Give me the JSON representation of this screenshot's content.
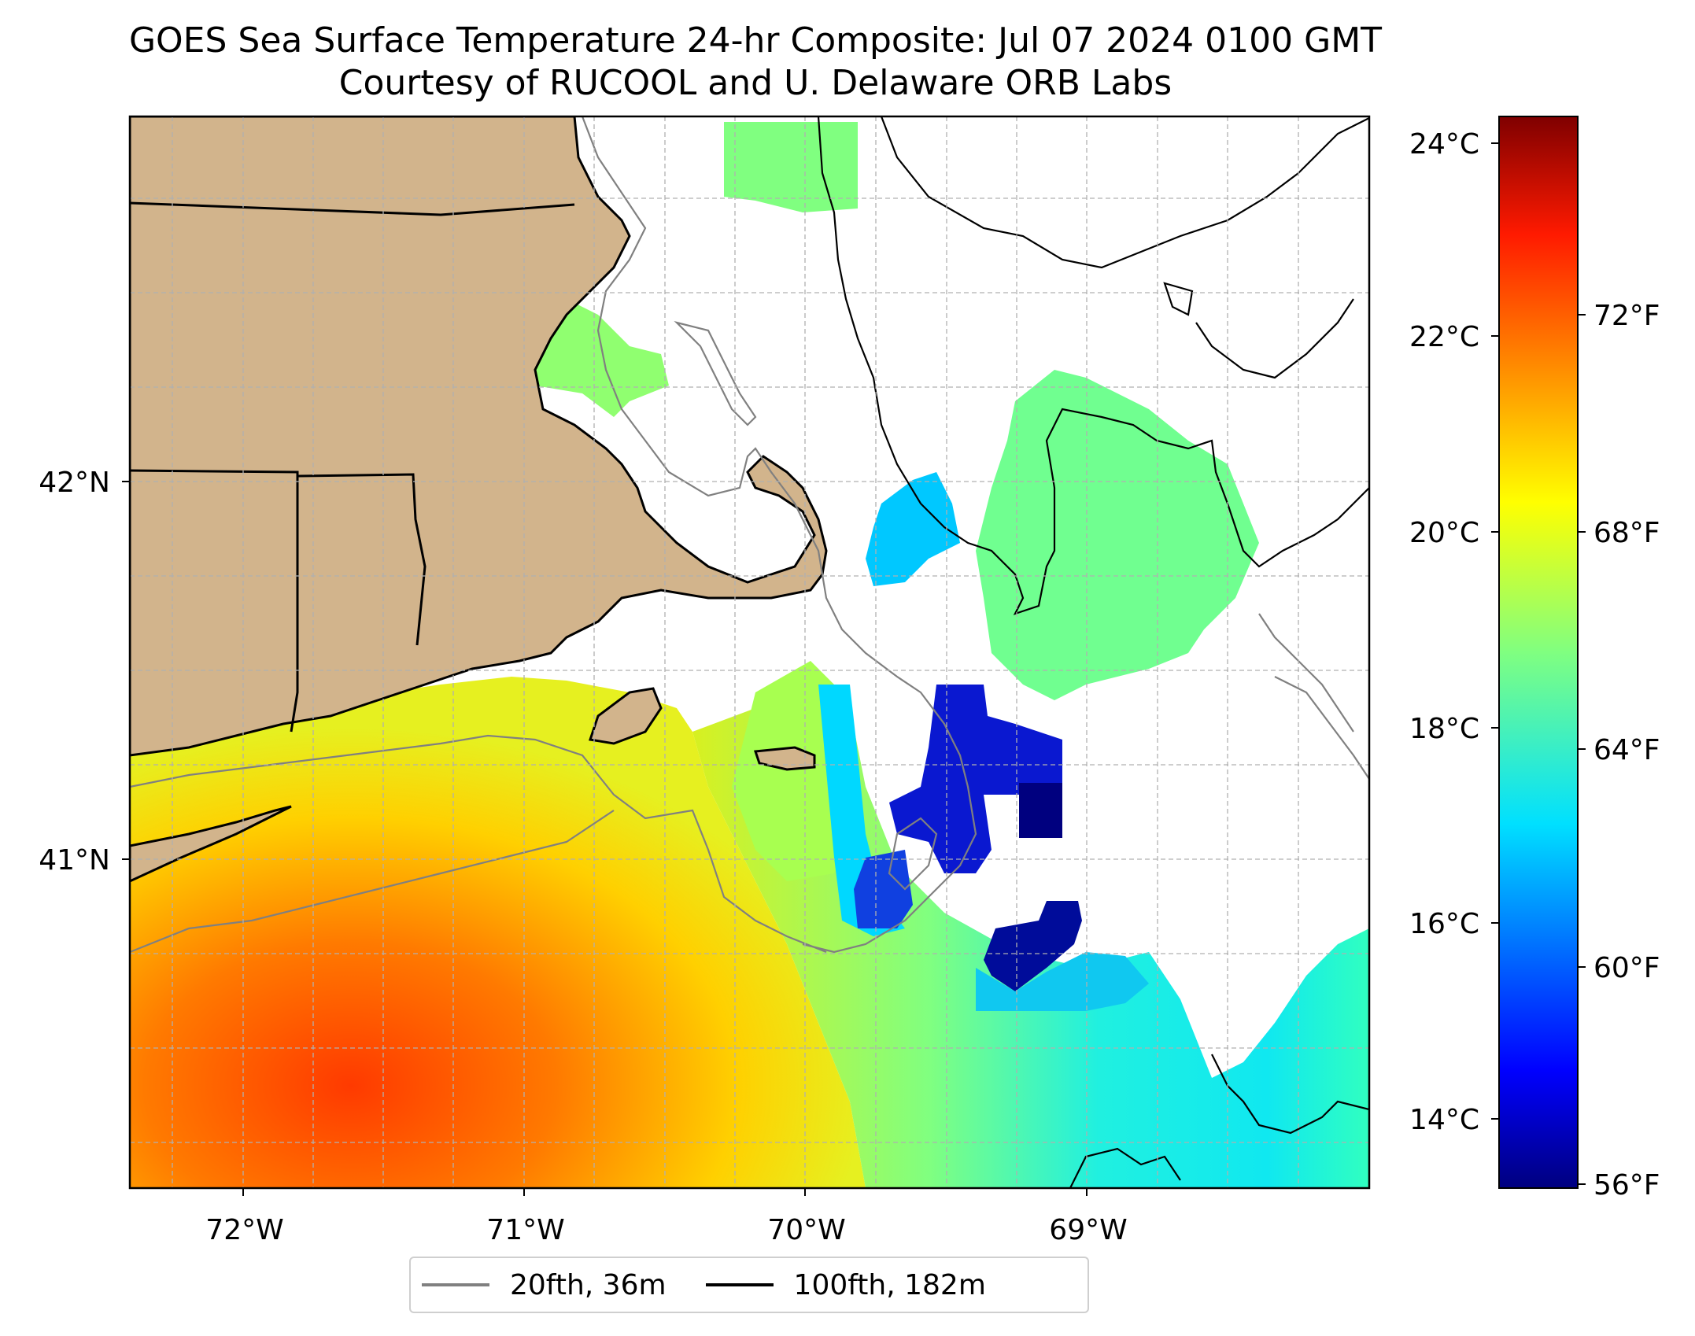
{
  "title": {
    "line1": "GOES Sea Surface Temperature 24-hr Composite: Jul 07 2024 0100 GMT",
    "line2": "Courtesy of RUCOOL and U. Delaware ORB Labs"
  },
  "axes": {
    "lon_ticks": [
      "72°W",
      "71°W",
      "70°W",
      "69°W"
    ],
    "lat_ticks": [
      "42°N",
      "41°N"
    ]
  },
  "colorbar": {
    "celsius_ticks": [
      "24°C",
      "22°C",
      "20°C",
      "18°C",
      "16°C",
      "14°C"
    ],
    "fahrenheit_ticks": [
      "72°F",
      "68°F",
      "64°F",
      "60°F",
      "56°F"
    ],
    "colormap": "jet"
  },
  "legend": {
    "items": [
      {
        "label": "20fth, 36m",
        "color": "#808080"
      },
      {
        "label": "100fth, 182m",
        "color": "#000000"
      }
    ]
  },
  "colors": {
    "land": "#d2b48c",
    "no_data": "#ffffff",
    "grid": "#b0b0b0"
  }
}
